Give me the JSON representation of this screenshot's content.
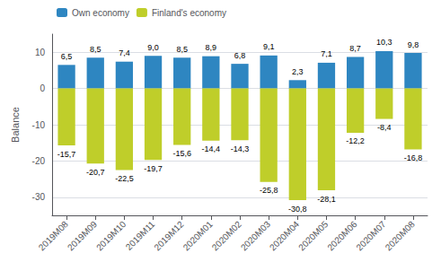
{
  "chart_data": {
    "type": "bar",
    "categories": [
      "2019M08",
      "2019M09",
      "2019M10",
      "2019M11",
      "2019M12",
      "2020M01",
      "2020M02",
      "2020M03",
      "2020M04",
      "2020M05",
      "2020M06",
      "2020M07",
      "2020M08"
    ],
    "series": [
      {
        "name": "Own economy",
        "color": "#2E86C1",
        "values": [
          6.5,
          8.5,
          7.4,
          9.0,
          8.5,
          8.9,
          6.8,
          9.1,
          2.3,
          7.1,
          8.7,
          10.3,
          9.8
        ],
        "value_labels": [
          "6,5",
          "8,5",
          "7,4",
          "9,0",
          "8,5",
          "8,9",
          "6,8",
          "9,1",
          "2,3",
          "7,1",
          "8,7",
          "10,3",
          "9,8"
        ]
      },
      {
        "name": "Finland's economy",
        "color": "#BFCE2A",
        "values": [
          -15.7,
          -20.7,
          -22.5,
          -19.7,
          -15.6,
          -14.4,
          -14.3,
          -25.8,
          -30.8,
          -28.1,
          -12.2,
          -8.4,
          -16.8
        ],
        "value_labels": [
          "-15,7",
          "-20,7",
          "-22,5",
          "-19,7",
          "-15,6",
          "-14,4",
          "-14,3",
          "-25,8",
          "-30,8",
          "-28,1",
          "-12,2",
          "-8,4",
          "-16,8"
        ]
      }
    ],
    "ylabel": "Balance",
    "ylim": [
      -35,
      15
    ],
    "yticks": [
      -30,
      -20,
      -10,
      0,
      10
    ],
    "grid": true,
    "legend": "upper left",
    "data_labels": true
  }
}
